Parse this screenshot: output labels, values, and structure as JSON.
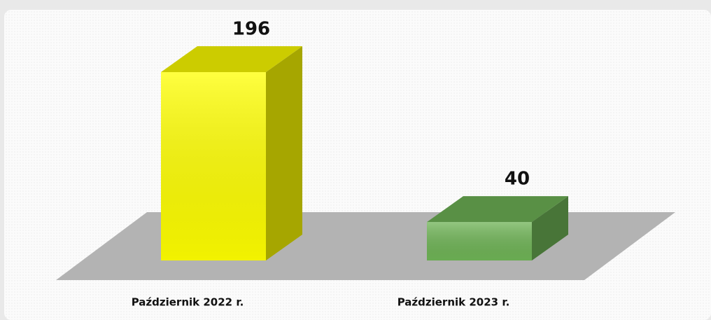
{
  "chart_data": {
    "type": "bar3d",
    "categories": [
      "Październik 2022 r.",
      "Październik 2023 r."
    ],
    "values": [
      196,
      40
    ],
    "colors": [
      "#ffff00",
      "#6fb456"
    ]
  }
}
